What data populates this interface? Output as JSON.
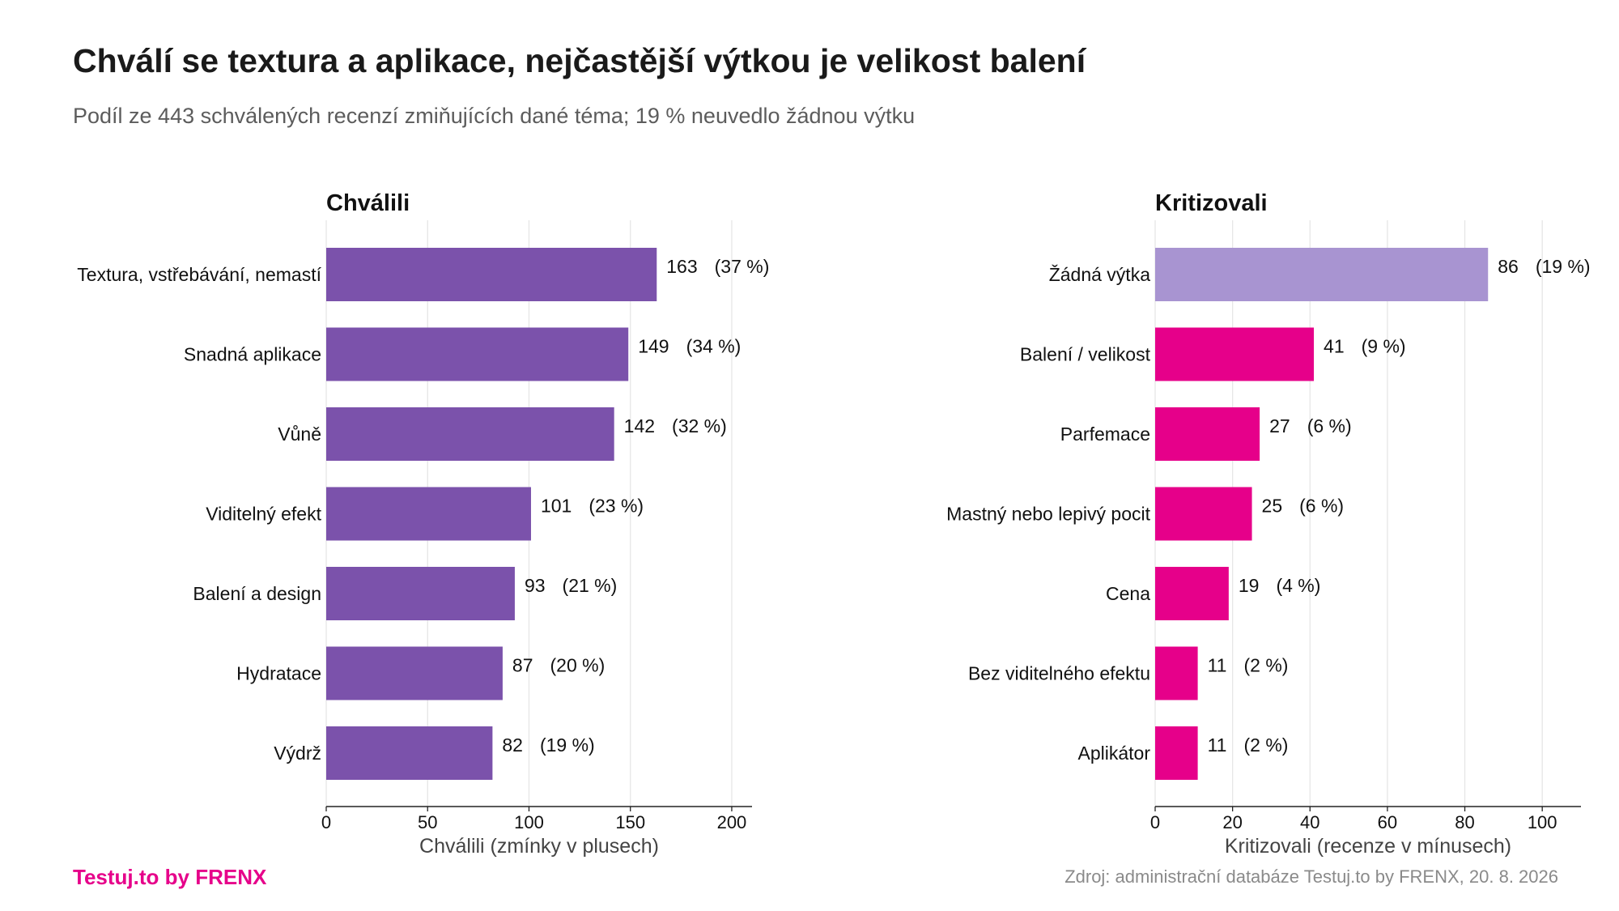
{
  "header": {
    "title": "Chválí se textura a aplikace, nejčastější výtkou je velikost balení",
    "subtitle": "Podíl ze 443 schválených recenzí zmiňujících dané téma; 19 % neuvedlo žádnou výtku"
  },
  "footer": {
    "brand": "Testuj.to by FRENX",
    "brand_color": "#e6008a",
    "source": "Zdroj: administrační databáze Testuj.to by FRENX, 20. 8. 2026"
  },
  "chart_data": [
    {
      "type": "bar",
      "orientation": "horizontal",
      "title": "Chválili",
      "xlabel": "Chválili (zmínky v plusech)",
      "xlim": [
        0,
        210
      ],
      "xticks": [
        0,
        50,
        100,
        150,
        200
      ],
      "grid": true,
      "color": "#7b52ab",
      "categories": [
        "Textura, vstřebávání, nemastí",
        "Snadná aplikace",
        "Vůně",
        "Viditelný efekt",
        "Balení a design",
        "Hydratace",
        "Výdrž"
      ],
      "values": [
        163,
        149,
        142,
        101,
        93,
        87,
        82
      ],
      "percent_labels": [
        "(37 %)",
        "(34 %)",
        "(32 %)",
        "(23 %)",
        "(21 %)",
        "(20 %)",
        "(19 %)"
      ]
    },
    {
      "type": "bar",
      "orientation": "horizontal",
      "title": "Kritizovali",
      "xlabel": "Kritizovali (recenze v mínusech)",
      "xlim": [
        0,
        110
      ],
      "xticks": [
        0,
        20,
        40,
        60,
        80,
        100
      ],
      "grid": true,
      "color": "#e6008a",
      "highlight_color": "#a894d1",
      "categories": [
        "Žádná výtka",
        "Balení / velikost",
        "Parfemace",
        "Mastný nebo lepivý pocit",
        "Cena",
        "Bez viditelného efektu",
        "Aplikátor"
      ],
      "values": [
        86,
        41,
        27,
        25,
        19,
        11,
        11
      ],
      "percent_labels": [
        "(19 %)",
        "(9 %)",
        "(6 %)",
        "(6 %)",
        "(4 %)",
        "(2 %)",
        "(2 %)"
      ],
      "highlight_index": 0
    }
  ]
}
